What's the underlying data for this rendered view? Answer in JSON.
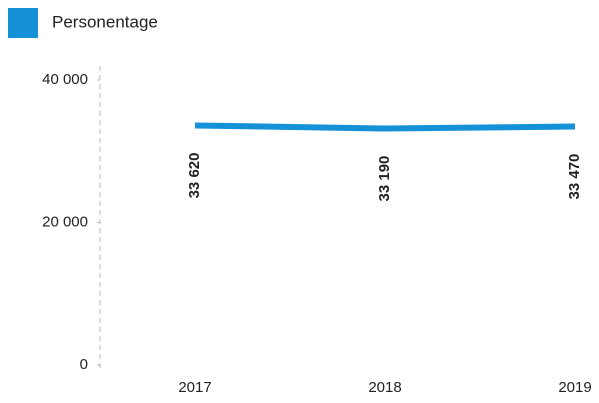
{
  "chart_data": {
    "type": "line",
    "categories": [
      "2017",
      "2018",
      "2019"
    ],
    "series": [
      {
        "name": "Personentage",
        "color": "#1591d8",
        "values": [
          33620,
          33190,
          33470
        ],
        "value_labels": [
          "33 620",
          "33 190",
          "33 470"
        ]
      }
    ],
    "ylim": [
      0,
      40000
    ],
    "yticks": [
      {
        "value": 0,
        "label": "0"
      },
      {
        "value": 20000,
        "label": "20 000"
      },
      {
        "value": 40000,
        "label": "40 000"
      }
    ],
    "legend": "top-left"
  }
}
